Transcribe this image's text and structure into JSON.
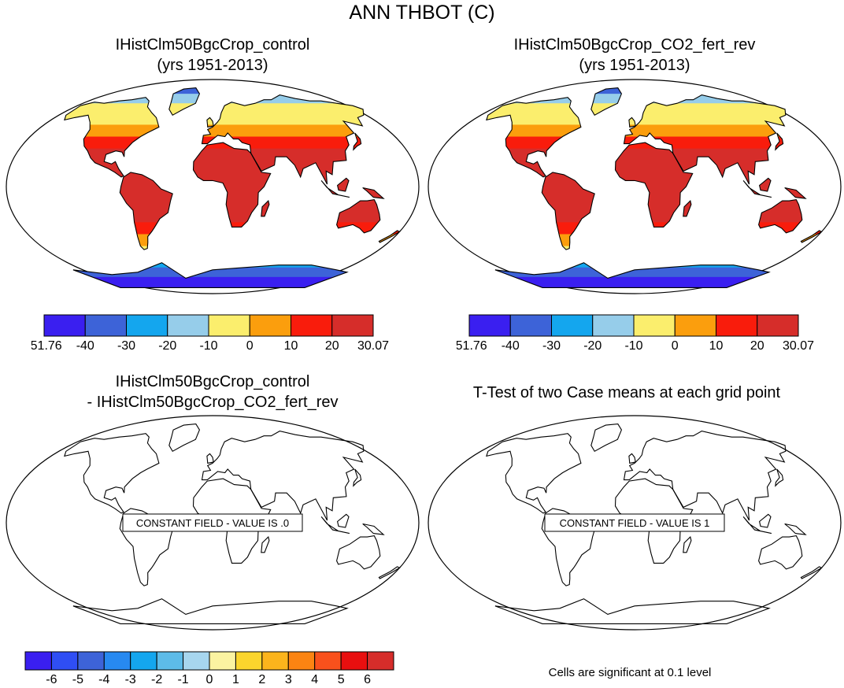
{
  "title": "ANN THBOT (C)",
  "panels": [
    {
      "id": "control",
      "title_lines": [
        "IHistClm50BgcCrop_control",
        "(yrs 1951-2013)"
      ],
      "kind": "field"
    },
    {
      "id": "co2",
      "title_lines": [
        "IHistClm50BgcCrop_CO2_fert_rev",
        "(yrs 1951-2013)"
      ],
      "kind": "field"
    },
    {
      "id": "diff",
      "title_lines": [
        "IHistClm50BgcCrop_control",
        "- IHistClm50BgcCrop_CO2_fert_rev"
      ],
      "kind": "constant",
      "constant_label": "CONSTANT FIELD - VALUE IS .0"
    },
    {
      "id": "ttest",
      "title_lines": [
        "T-Test of two Case means at each grid point"
      ],
      "kind": "constant",
      "constant_label": "CONSTANT FIELD - VALUE IS 1"
    }
  ],
  "colorbar_top": {
    "labels": [
      "-51.76",
      "-40",
      "-30",
      "-20",
      "-10",
      "0",
      "10",
      "20",
      "30.07"
    ],
    "colors": [
      "#3a1ff0",
      "#3d63d8",
      "#14a6ee",
      "#96cdea",
      "#fbee6d",
      "#fb9e0d",
      "#f91c0c",
      "#d62d2a"
    ]
  },
  "colorbar_bottom": {
    "labels": [
      "-6",
      "-5",
      "-4",
      "-3",
      "-2",
      "-1",
      "0",
      "1",
      "2",
      "3",
      "4",
      "5",
      "6"
    ],
    "colors": [
      "#3a1ff0",
      "#2f4ef4",
      "#3d63d8",
      "#2789f0",
      "#14a6ee",
      "#5dbbe8",
      "#a7d6ee",
      "#fbf3a1",
      "#fbd52d",
      "#fbb41c",
      "#fb8412",
      "#f9511c",
      "#e80f0f",
      "#d62d2a"
    ]
  },
  "footnote": "Cells are significant at 0.1 level"
}
